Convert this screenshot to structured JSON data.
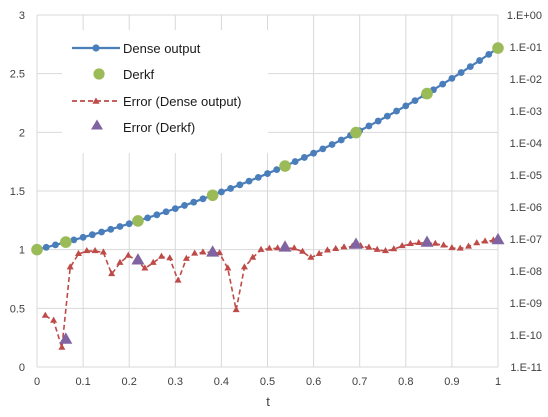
{
  "chart_data": {
    "type": "line",
    "xlabel": "t",
    "xlim": [
      0,
      1
    ],
    "ylim": [
      0,
      3
    ],
    "y2_scale": "log",
    "y2lim": [
      1e-11,
      1
    ],
    "x_ticks": [
      "0",
      "0.1",
      "0.2",
      "0.3",
      "0.4",
      "0.5",
      "0.6",
      "0.7",
      "0.8",
      "0.9",
      "1"
    ],
    "y_ticks": [
      "0",
      "0.5",
      "1",
      "1.5",
      "2",
      "2.5",
      "3"
    ],
    "y2_ticks": [
      "1.E-11",
      "1.E-10",
      "1.E-09",
      "1.E-08",
      "1.E-07",
      "1.E-06",
      "1.E-05",
      "1.E-04",
      "1.E-03",
      "1.E-02",
      "1.E-01",
      "1.E+00"
    ],
    "grid": true,
    "legend_position": "top-left",
    "series": [
      {
        "name": "Dense output",
        "axis": "left",
        "color": "#4a7ebb",
        "style": "line-circle-markers",
        "x": [
          0,
          0.02,
          0.04,
          0.06,
          0.08,
          0.1,
          0.12,
          0.14,
          0.16,
          0.18,
          0.2,
          0.22,
          0.24,
          0.26,
          0.28,
          0.3,
          0.32,
          0.34,
          0.36,
          0.38,
          0.4,
          0.42,
          0.44,
          0.46,
          0.48,
          0.5,
          0.52,
          0.54,
          0.56,
          0.58,
          0.6,
          0.62,
          0.64,
          0.66,
          0.68,
          0.7,
          0.72,
          0.74,
          0.76,
          0.78,
          0.8,
          0.82,
          0.84,
          0.86,
          0.88,
          0.9,
          0.92,
          0.94,
          0.96,
          0.98,
          1
        ],
        "y": [
          1.0,
          1.0202,
          1.0408,
          1.0618,
          1.0833,
          1.1052,
          1.1275,
          1.1503,
          1.1735,
          1.1972,
          1.2214,
          1.2461,
          1.2712,
          1.2969,
          1.3231,
          1.3499,
          1.3771,
          1.4049,
          1.4333,
          1.4623,
          1.4918,
          1.522,
          1.5527,
          1.584,
          1.6161,
          1.6487,
          1.682,
          1.716,
          1.7507,
          1.786,
          1.8221,
          1.8589,
          1.8965,
          1.9348,
          1.9739,
          2.0138,
          2.0544,
          2.0959,
          2.1383,
          2.1815,
          2.2255,
          2.2705,
          2.3164,
          2.3632,
          2.4109,
          2.4596,
          2.5093,
          2.56,
          2.6117,
          2.6645,
          2.7183
        ]
      },
      {
        "name": "Derkf",
        "axis": "left",
        "color": "#9bbb59",
        "style": "circle-markers",
        "x": [
          0,
          0.0625,
          0.219,
          0.381,
          0.538,
          0.692,
          0.846,
          1
        ],
        "y": [
          1.0,
          1.0645,
          1.2448,
          1.4638,
          1.7125,
          1.9977,
          2.3302,
          2.7183
        ]
      },
      {
        "name": "Error (Dense output)",
        "axis": "right",
        "color": "#be4b48",
        "style": "dashed-line-triangle-markers",
        "x": [
          0.018,
          0.036,
          0.054,
          0.072,
          0.09,
          0.108,
          0.126,
          0.144,
          0.162,
          0.18,
          0.198,
          0.216,
          0.234,
          0.252,
          0.27,
          0.288,
          0.306,
          0.324,
          0.342,
          0.36,
          0.378,
          0.396,
          0.414,
          0.432,
          0.45,
          0.468,
          0.486,
          0.504,
          0.522,
          0.54,
          0.558,
          0.576,
          0.594,
          0.612,
          0.63,
          0.648,
          0.666,
          0.684,
          0.702,
          0.72,
          0.738,
          0.756,
          0.774,
          0.792,
          0.81,
          0.828,
          0.846,
          0.864,
          0.882,
          0.9,
          0.918,
          0.936,
          0.954,
          0.972,
          0.99
        ],
        "y": [
          4e-10,
          2.8e-10,
          4e-11,
          1.3e-08,
          3.4e-08,
          4.2e-08,
          4.2e-08,
          3.8e-08,
          8e-09,
          1.8e-08,
          3e-08,
          2.2e-08,
          1.2e-08,
          1.8e-08,
          2.8e-08,
          2.5e-08,
          5e-09,
          2.4e-08,
          3.5e-08,
          3.8e-08,
          3.9e-08,
          3.6e-08,
          1.2e-08,
          6e-10,
          1.3e-08,
          2.6e-08,
          4.6e-08,
          5e-08,
          5.1e-08,
          5.2e-08,
          5.1e-08,
          4e-08,
          2.6e-08,
          3.4e-08,
          4.4e-08,
          4.9e-08,
          5.5e-08,
          5.8e-08,
          6e-08,
          5.4e-08,
          4.6e-08,
          4.2e-08,
          4.8e-08,
          6e-08,
          7e-08,
          7.5e-08,
          7.6e-08,
          7.1e-08,
          6.3e-08,
          5.2e-08,
          5e-08,
          5.8e-08,
          7.4e-08,
          8.4e-08,
          9e-08
        ]
      },
      {
        "name": "Error (Derkf)",
        "axis": "right",
        "color": "#8064a2",
        "style": "triangle-markers",
        "x": [
          0.0625,
          0.219,
          0.381,
          0.538,
          0.692,
          0.846,
          1
        ],
        "y": [
          7e-11,
          2.1e-08,
          3.7e-08,
          5.3e-08,
          6.5e-08,
          7.5e-08,
          9e-08
        ]
      }
    ]
  }
}
